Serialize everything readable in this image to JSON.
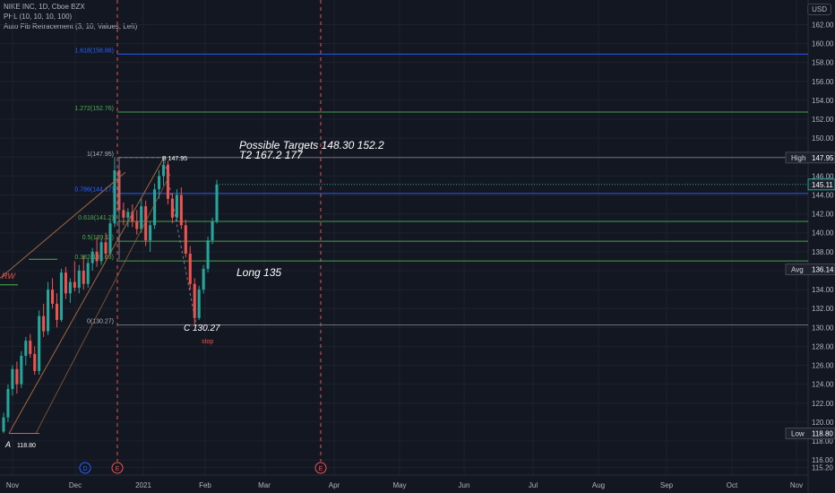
{
  "header": {
    "symbol_line": "NIKE INC, 1D, Cboe BZX",
    "indicator_1": "PHL (10, 10, 10, 100)",
    "indicator_2": "Auto Fib Retracement (3, 10, Values, Left)",
    "currency": "USD"
  },
  "colors": {
    "background": "#131722",
    "grid": "#1e222d",
    "up": "#26a69a",
    "down": "#ef5350",
    "fib_blue": "#2962ff",
    "fib_green": "#4caf50",
    "event_line": "#ef5350"
  },
  "chart_data": {
    "type": "candlestick",
    "y_axis": {
      "ticks": [
        115.2,
        116.0,
        118.0,
        120.0,
        122.0,
        124.0,
        126.0,
        128.0,
        130.0,
        132.0,
        134.0,
        136.0,
        138.0,
        140.0,
        142.0,
        144.0,
        146.0,
        148.0,
        150.0,
        152.0,
        154.0,
        156.0,
        158.0,
        160.0,
        162.0
      ],
      "range": [
        114.4,
        164.6
      ]
    },
    "x_axis": {
      "labels": [
        "Nov",
        "Dec",
        "2021",
        "Feb",
        "Mar",
        "Apr",
        "May",
        "Jun",
        "Jul",
        "Aug",
        "Sep",
        "Oct",
        "Nov"
      ]
    },
    "price_labels": [
      {
        "text": "High",
        "value": "147.95",
        "price": 147.95,
        "style": "dark"
      },
      {
        "text": "",
        "value": "145.11",
        "price": 145.11,
        "style": "current"
      },
      {
        "text": "Avg",
        "value": "136.14",
        "price": 136.14,
        "style": "dark"
      },
      {
        "text": "Low",
        "value": "118.80",
        "price": 118.8,
        "style": "dark"
      }
    ],
    "fib_levels": [
      {
        "label": "1.618(158.88)",
        "price": 158.88,
        "color": "#2962ff",
        "extended": true
      },
      {
        "label": "1.272(152.76)",
        "price": 152.76,
        "color": "#4caf50",
        "extended": true
      },
      {
        "label": "1(147.95)",
        "price": 147.95,
        "color": "#787b86",
        "extended": true
      },
      {
        "label": "0.786(144.17)",
        "price": 144.17,
        "color": "#2962ff",
        "extended": true
      },
      {
        "label": "0.618(141.2)",
        "price": 141.2,
        "color": "#4caf50",
        "extended": true
      },
      {
        "label": "0.5(139.11)",
        "price": 139.11,
        "color": "#4caf50",
        "extended": true
      },
      {
        "label": "0.382(137.03)",
        "price": 137.03,
        "color": "#4caf50",
        "extended": true
      },
      {
        "label": "0(130.27)",
        "price": 130.27,
        "color": "#787b86",
        "extended": true
      }
    ],
    "annotations": [
      {
        "id": "targets-1",
        "text": "Possible Targets 148.30  152.2"
      },
      {
        "id": "targets-2",
        "text": "T2  167.2  177"
      },
      {
        "id": "long",
        "text": "Long 135"
      },
      {
        "id": "c-point",
        "text": "C  130.27"
      },
      {
        "id": "stop",
        "text": "stop"
      },
      {
        "id": "b-point",
        "text": "B 147.95"
      },
      {
        "id": "a-point",
        "text": "A"
      },
      {
        "id": "a-value",
        "text": "118.80"
      },
      {
        "id": "rw",
        "text": "RW"
      }
    ],
    "events": [
      {
        "id": "dividend",
        "letter": "D"
      },
      {
        "id": "earnings-1",
        "letter": "E"
      },
      {
        "id": "earnings-2",
        "letter": "E"
      }
    ],
    "candles": [
      [
        119.0,
        121.0,
        118.8,
        120.5
      ],
      [
        120.5,
        124.0,
        120.0,
        123.5
      ],
      [
        123.5,
        126.0,
        122.8,
        125.6
      ],
      [
        125.6,
        126.4,
        123.0,
        124.0
      ],
      [
        124.0,
        127.5,
        123.6,
        127.0
      ],
      [
        127.0,
        129.0,
        126.0,
        128.6
      ],
      [
        128.6,
        129.3,
        126.8,
        127.2
      ],
      [
        127.2,
        128.0,
        125.0,
        125.4
      ],
      [
        125.4,
        131.8,
        125.0,
        131.2
      ],
      [
        131.2,
        132.5,
        129.0,
        129.6
      ],
      [
        129.6,
        134.8,
        129.2,
        134.0
      ],
      [
        134.0,
        135.2,
        132.0,
        132.5
      ],
      [
        132.5,
        133.6,
        130.0,
        130.8
      ],
      [
        130.8,
        136.2,
        130.6,
        135.8
      ],
      [
        135.8,
        136.4,
        133.0,
        133.6
      ],
      [
        133.6,
        135.2,
        132.6,
        134.8
      ],
      [
        134.8,
        137.0,
        133.8,
        134.2
      ],
      [
        134.2,
        136.6,
        133.6,
        136.0
      ],
      [
        136.0,
        137.6,
        134.0,
        134.6
      ],
      [
        134.6,
        137.2,
        134.2,
        136.8
      ],
      [
        136.8,
        138.4,
        136.0,
        138.0
      ],
      [
        138.0,
        139.6,
        136.4,
        137.0
      ],
      [
        137.0,
        139.4,
        136.6,
        139.0
      ],
      [
        139.0,
        140.0,
        137.2,
        137.8
      ],
      [
        137.8,
        141.4,
        137.6,
        141.0
      ],
      [
        141.0,
        148.0,
        140.6,
        146.6
      ],
      [
        146.6,
        147.0,
        142.0,
        142.4
      ],
      [
        142.4,
        143.2,
        140.8,
        141.6
      ],
      [
        141.6,
        142.6,
        140.6,
        142.2
      ],
      [
        142.2,
        143.0,
        140.6,
        141.2
      ],
      [
        141.2,
        142.4,
        139.8,
        140.4
      ],
      [
        140.4,
        143.6,
        140.0,
        142.8
      ],
      [
        142.8,
        143.4,
        138.6,
        139.2
      ],
      [
        139.2,
        141.2,
        138.0,
        140.8
      ],
      [
        140.8,
        145.2,
        140.4,
        144.6
      ],
      [
        144.6,
        146.6,
        143.6,
        146.0
      ],
      [
        146.0,
        147.95,
        145.0,
        147.2
      ],
      [
        147.2,
        147.6,
        143.0,
        143.6
      ],
      [
        143.6,
        144.2,
        141.0,
        141.6
      ],
      [
        141.6,
        144.6,
        141.2,
        144.0
      ],
      [
        144.0,
        144.8,
        140.4,
        140.8
      ],
      [
        140.8,
        141.4,
        137.4,
        137.8
      ],
      [
        137.8,
        138.6,
        134.0,
        134.6
      ],
      [
        134.6,
        135.2,
        130.27,
        131.0
      ],
      [
        131.0,
        134.4,
        130.8,
        134.0
      ],
      [
        134.0,
        136.6,
        133.6,
        136.2
      ],
      [
        136.2,
        139.6,
        135.8,
        139.2
      ],
      [
        139.2,
        141.6,
        138.8,
        141.2
      ],
      [
        141.2,
        145.6,
        141.0,
        145.11
      ]
    ]
  }
}
